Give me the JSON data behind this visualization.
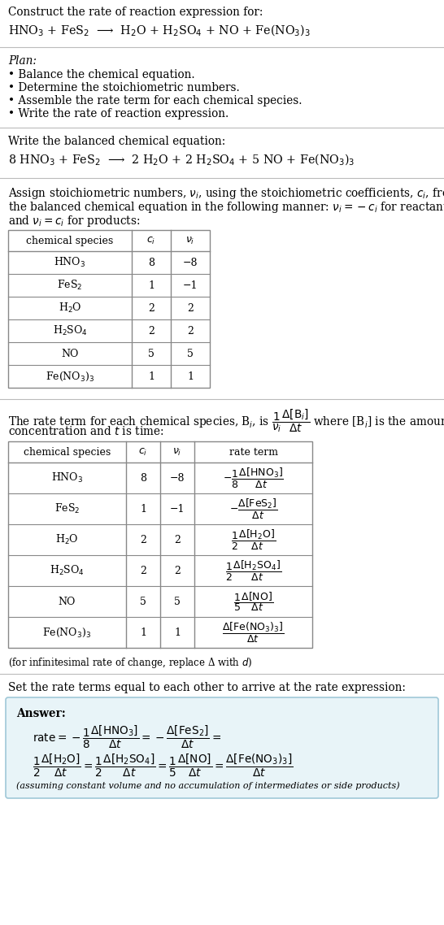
{
  "title_line1": "Construct the rate of reaction expression for:",
  "eq_unbalanced": "HNO$_3$ + FeS$_2$  ⟶  H$_2$O + H$_2$SO$_4$ + NO + Fe(NO$_3$)$_3$",
  "plan_header": "Plan:",
  "plan_items": [
    "• Balance the chemical equation.",
    "• Determine the stoichiometric numbers.",
    "• Assemble the rate term for each chemical species.",
    "• Write the rate of reaction expression."
  ],
  "balanced_header": "Write the balanced chemical equation:",
  "eq_balanced": "8 HNO$_3$ + FeS$_2$  ⟶  2 H$_2$O + 2 H$_2$SO$_4$ + 5 NO + Fe(NO$_3$)$_3$",
  "stoich_text1": "Assign stoichiometric numbers, $\\nu_i$, using the stoichiometric coefficients, $c_i$, from",
  "stoich_text2": "the balanced chemical equation in the following manner: $\\nu_i = -c_i$ for reactants",
  "stoich_text3": "and $\\nu_i = c_i$ for products:",
  "table1_headers": [
    "chemical species",
    "$c_i$",
    "$\\nu_i$"
  ],
  "table1_rows": [
    [
      "HNO$_3$",
      "8",
      "−8"
    ],
    [
      "FeS$_2$",
      "1",
      "−1"
    ],
    [
      "H$_2$O",
      "2",
      "2"
    ],
    [
      "H$_2$SO$_4$",
      "2",
      "2"
    ],
    [
      "NO",
      "5",
      "5"
    ],
    [
      "Fe(NO$_3$)$_3$",
      "1",
      "1"
    ]
  ],
  "rate_text1": "The rate term for each chemical species, B$_i$, is $\\dfrac{1}{\\nu_i}\\dfrac{\\Delta[\\mathrm{B}_i]}{\\Delta t}$ where [B$_i$] is the amount",
  "rate_text2": "concentration and $t$ is time:",
  "table2_headers": [
    "chemical species",
    "$c_i$",
    "$\\nu_i$",
    "rate term"
  ],
  "table2_rows": [
    [
      "HNO$_3$",
      "8",
      "−8",
      "$-\\dfrac{1}{8}\\dfrac{\\Delta[\\mathrm{HNO}_3]}{\\Delta t}$"
    ],
    [
      "FeS$_2$",
      "1",
      "−1",
      "$-\\dfrac{\\Delta[\\mathrm{FeS}_2]}{\\Delta t}$"
    ],
    [
      "H$_2$O",
      "2",
      "2",
      "$\\dfrac{1}{2}\\dfrac{\\Delta[\\mathrm{H_2O}]}{\\Delta t}$"
    ],
    [
      "H$_2$SO$_4$",
      "2",
      "2",
      "$\\dfrac{1}{2}\\dfrac{\\Delta[\\mathrm{H_2SO_4}]}{\\Delta t}$"
    ],
    [
      "NO",
      "5",
      "5",
      "$\\dfrac{1}{5}\\dfrac{\\Delta[\\mathrm{NO}]}{\\Delta t}$"
    ],
    [
      "Fe(NO$_3$)$_3$",
      "1",
      "1",
      "$\\dfrac{\\Delta[\\mathrm{Fe(NO_3)_3}]}{\\Delta t}$"
    ]
  ],
  "infinitesimal_note": "(for infinitesimal rate of change, replace Δ with $d$)",
  "set_rate_text": "Set the rate terms equal to each other to arrive at the rate expression:",
  "answer_label": "Answer:",
  "answer_line1": "$\\mathrm{rate} = -\\dfrac{1}{8}\\dfrac{\\Delta[\\mathrm{HNO}_3]}{\\Delta t} = -\\dfrac{\\Delta[\\mathrm{FeS}_2]}{\\Delta t} =$",
  "answer_line2": "$\\dfrac{1}{2}\\dfrac{\\Delta[\\mathrm{H_2O}]}{\\Delta t} = \\dfrac{1}{2}\\dfrac{\\Delta[\\mathrm{H_2SO_4}]}{\\Delta t} = \\dfrac{1}{5}\\dfrac{\\Delta[\\mathrm{NO}]}{\\Delta t} = \\dfrac{\\Delta[\\mathrm{Fe(NO_3)_3}]}{\\Delta t}$",
  "answer_note": "(assuming constant volume and no accumulation of intermediates or side products)",
  "bg_color": "#ffffff",
  "table_border_color": "#888888",
  "answer_box_color": "#e8f4f8",
  "answer_box_border": "#a0c8d8",
  "text_color": "#000000",
  "line_color": "#cccccc"
}
